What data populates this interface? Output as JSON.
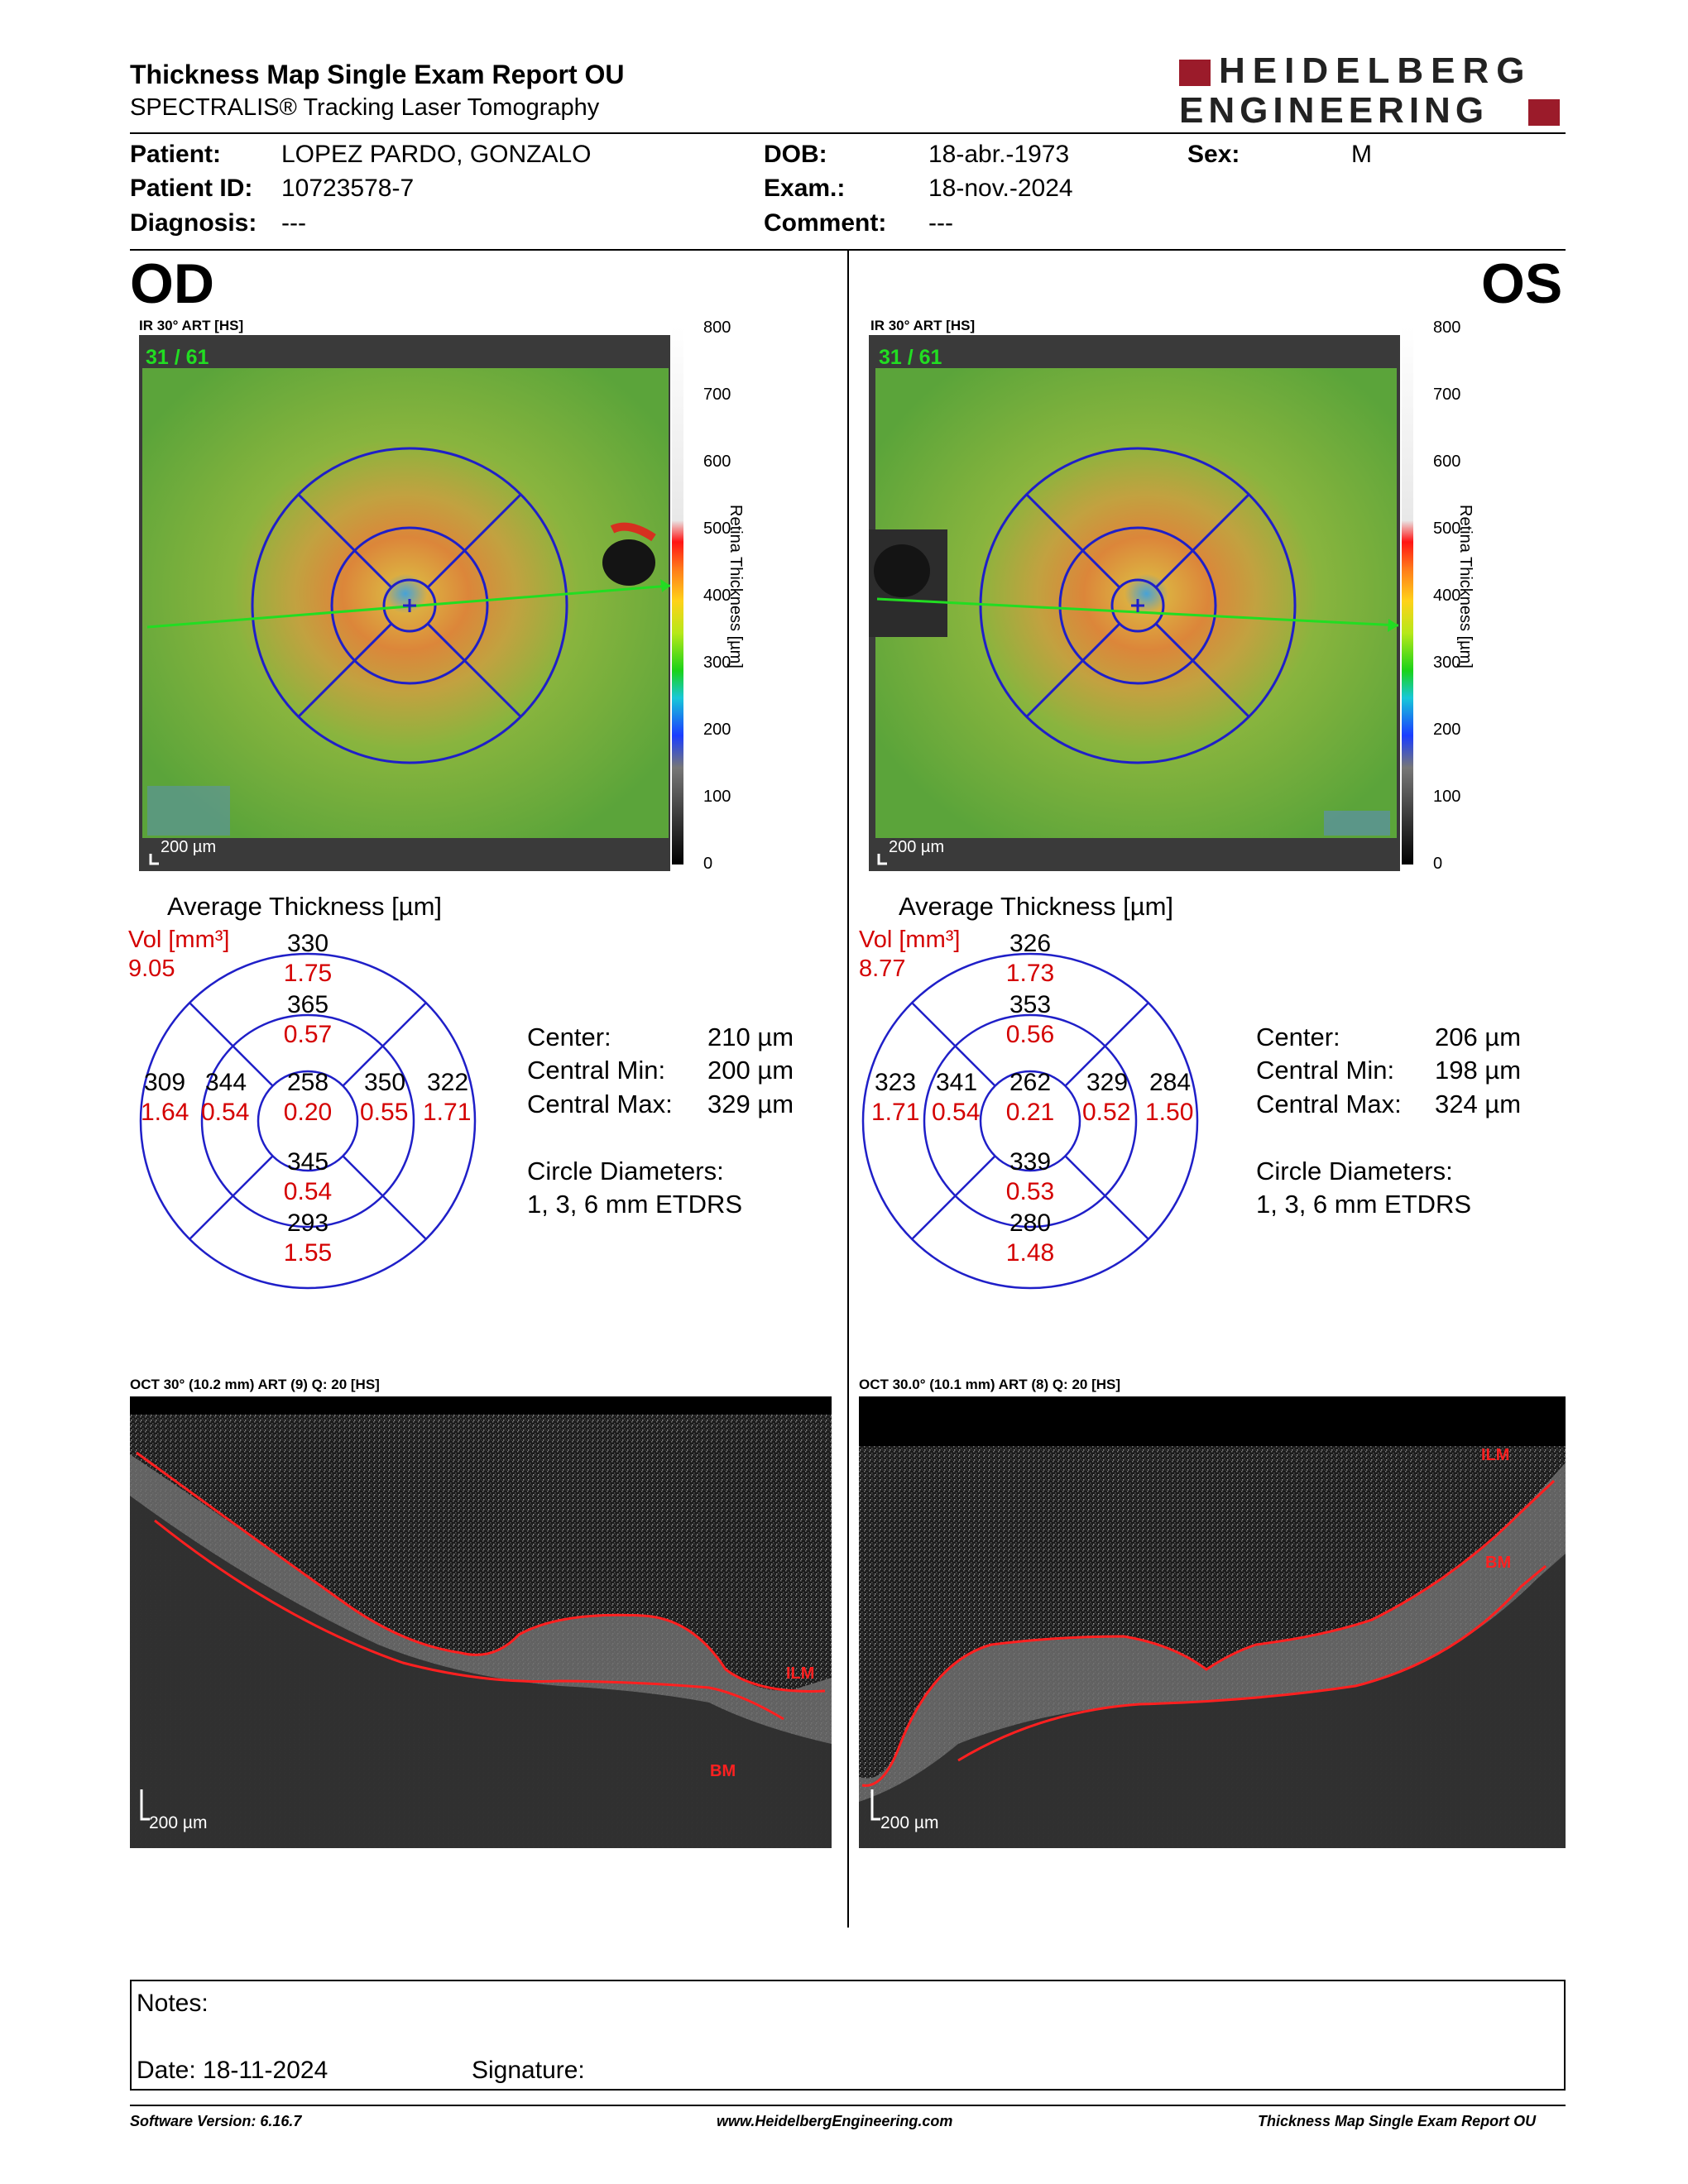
{
  "report": {
    "title": "Thickness Map Single Exam Report OU",
    "subtitle": "SPECTRALIS® Tracking Laser Tomography",
    "logo_line1": "HEIDELBERG",
    "logo_line2": "ENGINEERING",
    "brand_color": "#9b1b2a"
  },
  "patient": {
    "patient_label": "Patient:",
    "patient_value": "LOPEZ PARDO, GONZALO",
    "id_label": "Patient ID:",
    "id_value": "10723578-7",
    "diagnosis_label": "Diagnosis:",
    "diagnosis_value": "---",
    "dob_label": "DOB:",
    "dob_value": "18-abr.-1973",
    "exam_label": "Exam.:",
    "exam_value": "18-nov.-2024",
    "comment_label": "Comment:",
    "comment_value": "---",
    "sex_label": "Sex:",
    "sex_value": "M"
  },
  "od": {
    "eye": "OD",
    "map_header": "IR 30° ART [HS]",
    "scan_counter": "31 / 61",
    "scale_label": "200 µm",
    "colorbar_ticks": [
      "800",
      "700",
      "600",
      "500",
      "400",
      "300",
      "200",
      "100",
      "0"
    ],
    "colorbar_title": "Retina Thickness [µm]",
    "avg_title": "Average Thickness [µm]",
    "vol_label": "Vol [mm³]",
    "vol_value": "9.05",
    "etdrs": {
      "outer_sup": "330",
      "outer_sup_vol": "1.75",
      "inner_sup": "365",
      "inner_sup_vol": "0.57",
      "outer_left": "309",
      "outer_left_vol": "1.64",
      "inner_left": "344",
      "inner_left_vol": "0.54",
      "center": "258",
      "center_vol": "0.20",
      "inner_right": "350",
      "inner_right_vol": "0.55",
      "outer_right": "322",
      "outer_right_vol": "1.71",
      "inner_inf": "345",
      "inner_inf_vol": "0.54",
      "outer_inf": "293",
      "outer_inf_vol": "1.55"
    },
    "stats": {
      "center_label": "Center:",
      "center_value": "210 µm",
      "min_label": "Central Min:",
      "min_value": "200 µm",
      "max_label": "Central Max:",
      "max_value": "329 µm",
      "diam_label": "Circle Diameters:",
      "diam_value": "1, 3, 6 mm ETDRS"
    },
    "oct_header": "OCT 30° (10.2 mm) ART (9) Q: 20 [HS]",
    "oct_scale": "200 µm",
    "ilm": "ILM",
    "bm": "BM"
  },
  "os": {
    "eye": "OS",
    "map_header": "IR 30° ART [HS]",
    "scan_counter": "31 / 61",
    "scale_label": "200 µm",
    "colorbar_ticks": [
      "800",
      "700",
      "600",
      "500",
      "400",
      "300",
      "200",
      "100",
      "0"
    ],
    "colorbar_title": "Retina Thickness [µm]",
    "avg_title": "Average Thickness [µm]",
    "vol_label": "Vol [mm³]",
    "vol_value": "8.77",
    "etdrs": {
      "outer_sup": "326",
      "outer_sup_vol": "1.73",
      "inner_sup": "353",
      "inner_sup_vol": "0.56",
      "outer_left": "323",
      "outer_left_vol": "1.71",
      "inner_left": "341",
      "inner_left_vol": "0.54",
      "center": "262",
      "center_vol": "0.21",
      "inner_right": "329",
      "inner_right_vol": "0.52",
      "outer_right": "284",
      "outer_right_vol": "1.50",
      "inner_inf": "339",
      "inner_inf_vol": "0.53",
      "outer_inf": "280",
      "outer_inf_vol": "1.48"
    },
    "stats": {
      "center_label": "Center:",
      "center_value": "206 µm",
      "min_label": "Central Min:",
      "min_value": "198 µm",
      "max_label": "Central Max:",
      "max_value": "324 µm",
      "diam_label": "Circle Diameters:",
      "diam_value": "1, 3, 6 mm ETDRS"
    },
    "oct_header": "OCT 30.0° (10.1 mm) ART (8) Q: 20 [HS]",
    "oct_scale": "200 µm",
    "ilm": "ILM",
    "bm": "BM"
  },
  "notes": {
    "notes_label": "Notes:",
    "date_label": "Date: 18-11-2024",
    "signature_label": "Signature:"
  },
  "footer": {
    "software": "Software Version: 6.16.7",
    "website": "www.HeidelbergEngineering.com",
    "report_name": "Thickness Map Single Exam Report OU"
  }
}
